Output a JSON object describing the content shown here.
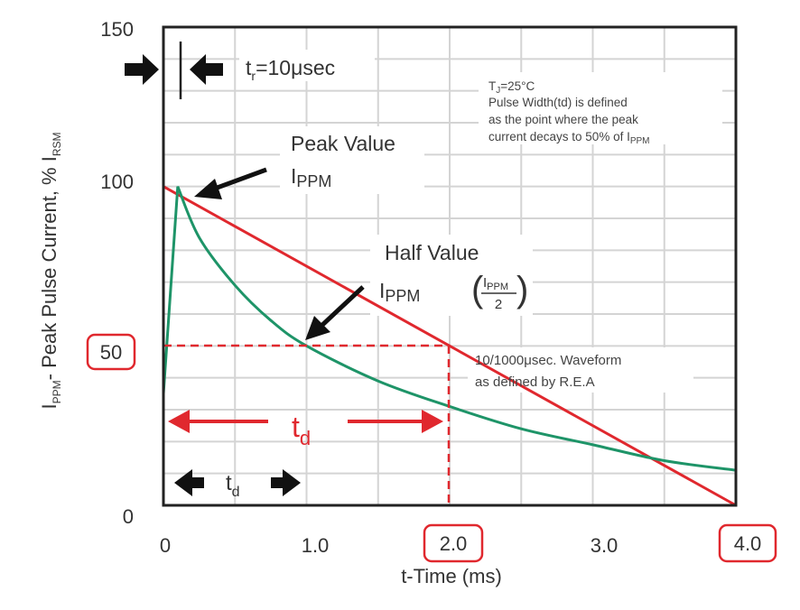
{
  "chart_data": {
    "type": "line",
    "xlabel": "t-Time (ms)",
    "ylabel": {
      "main": "I",
      "main_sub": "PPM",
      "rest": "- Peak Pulse Current, % I",
      "rest_sub": "RSM"
    },
    "xlim": [
      0,
      4.0
    ],
    "ylim": [
      0,
      150
    ],
    "grid": true,
    "x_ticks": [
      {
        "value": 0,
        "label": "0",
        "boxed": false
      },
      {
        "value": 1.0,
        "label": "1.0",
        "boxed": false
      },
      {
        "value": 2.0,
        "label": "2.0",
        "boxed": true
      },
      {
        "value": 3.0,
        "label": "3.0",
        "boxed": false
      },
      {
        "value": 4.0,
        "label": "4.0",
        "boxed": true
      }
    ],
    "y_ticks": [
      {
        "value": 0,
        "label": "0",
        "boxed": false
      },
      {
        "value": 50,
        "label": "50",
        "boxed": true
      },
      {
        "value": 100,
        "label": "100",
        "boxed": false
      },
      {
        "value": 150,
        "label": "150",
        "boxed": false
      }
    ],
    "series": [
      {
        "color": "#e0282e",
        "x": [
          0,
          0,
          4.0
        ],
        "y": [
          0,
          100,
          0
        ]
      },
      {
        "color": "#1e9468",
        "x": [
          0,
          0.1,
          0.25,
          0.5,
          0.75,
          1.0,
          1.5,
          2.0,
          2.5,
          3.0,
          3.5,
          4.0
        ],
        "y": [
          35,
          100,
          84,
          69,
          58,
          50,
          39,
          31,
          24,
          19,
          14,
          11
        ]
      }
    ],
    "reference_lines": {
      "y": 50,
      "x": 2.0,
      "color": "#e0282e"
    },
    "annotations": {
      "rise_time": {
        "t": "t",
        "sub": "r",
        "rest": "=10μsec"
      },
      "note": [
        "T",
        "J",
        "=25°C",
        "Pulse Width(td) is defined",
        "as the point where the peak",
        "current decays to 50% of I",
        "PPM"
      ],
      "peak": {
        "line1": "Peak Value",
        "i": "I",
        "sub": "PPM"
      },
      "half": {
        "line1": "Half Value",
        "i": "I",
        "sub": "PPM",
        "frac_num_i": "I",
        "frac_num_sub": "PPM",
        "frac_den": "2"
      },
      "waveform": [
        "10/1000μsec. Waveform",
        "as defined by R.E.A"
      ],
      "td_red": {
        "t": "t",
        "sub": "d"
      },
      "td_black": {
        "t": "t",
        "sub": "d"
      }
    }
  }
}
